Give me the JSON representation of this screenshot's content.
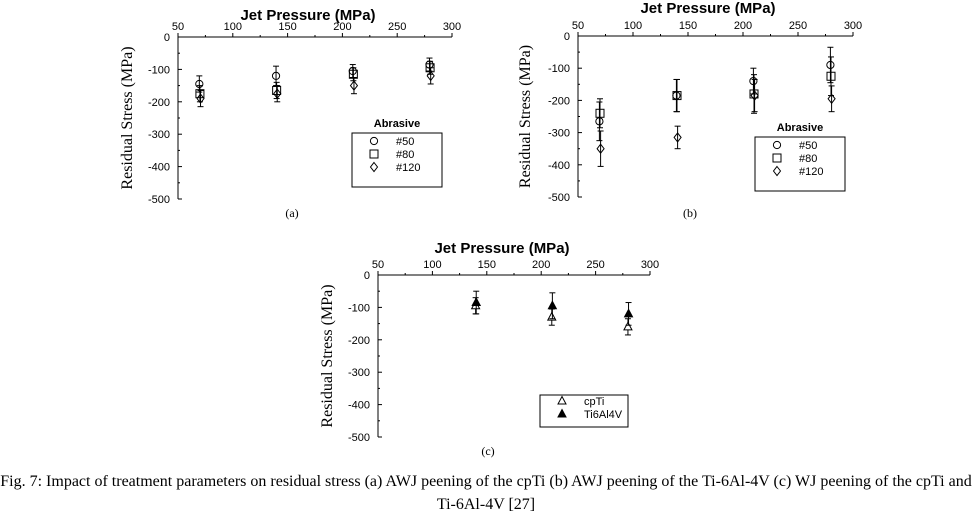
{
  "caption": "Fig. 7: Impact of treatment parameters on residual stress (a) AWJ peening of the cpTi (b) AWJ peening of the Ti-6Al-4V (c) WJ peening of the cpTi and Ti-6Al-4V [27]",
  "chart_data": [
    {
      "type": "scatter",
      "panel_label": "(a)",
      "title": "Jet Pressure (MPa)",
      "xlabel": "Jet Pressure (MPa)",
      "ylabel": "Residual Stress (MPa)",
      "xlim": [
        50,
        300
      ],
      "ylim": [
        -500,
        0
      ],
      "x_ticks": [
        50,
        100,
        150,
        200,
        250,
        300
      ],
      "y_ticks": [
        0,
        -100,
        -200,
        -300,
        -400,
        -500
      ],
      "legend": {
        "title": "Abrasive",
        "position": "bottom-right"
      },
      "error_bars": true,
      "series": [
        {
          "name": "#50",
          "marker": "circle",
          "x": [
            70,
            140,
            210,
            280
          ],
          "y": [
            -145,
            -120,
            -105,
            -85
          ],
          "err": [
            25,
            30,
            20,
            20
          ]
        },
        {
          "name": "#80",
          "marker": "square",
          "x": [
            70,
            140,
            210,
            280
          ],
          "y": [
            -175,
            -165,
            -115,
            -95
          ],
          "err": [
            25,
            25,
            20,
            20
          ]
        },
        {
          "name": "#120",
          "marker": "diamond",
          "x": [
            70,
            140,
            210,
            280
          ],
          "y": [
            -190,
            -175,
            -150,
            -120
          ],
          "err": [
            25,
            25,
            25,
            25
          ]
        }
      ]
    },
    {
      "type": "scatter",
      "panel_label": "(b)",
      "title": "Jet Pressure (MPa)",
      "xlabel": "Jet Pressure (MPa)",
      "ylabel": "Residual Stress (MPa)",
      "xlim": [
        50,
        300
      ],
      "ylim": [
        -500,
        0
      ],
      "x_ticks": [
        50,
        100,
        150,
        200,
        250,
        300
      ],
      "y_ticks": [
        0,
        -100,
        -200,
        -300,
        -400,
        -500
      ],
      "legend": {
        "title": "Abrasive",
        "position": "bottom-right"
      },
      "error_bars": true,
      "series": [
        {
          "name": "#50",
          "marker": "circle",
          "x": [
            70,
            140,
            210,
            280
          ],
          "y": [
            -265,
            -185,
            -140,
            -90
          ],
          "err": [
            60,
            50,
            40,
            55
          ]
        },
        {
          "name": "#80",
          "marker": "square",
          "x": [
            70,
            140,
            210,
            280
          ],
          "y": [
            -240,
            -185,
            -180,
            -125
          ],
          "err": [
            45,
            50,
            60,
            60
          ]
        },
        {
          "name": "#120",
          "marker": "diamond",
          "x": [
            70,
            140,
            210,
            280
          ],
          "y": [
            -350,
            -315,
            -185,
            -195
          ],
          "err": [
            55,
            35,
            50,
            40
          ]
        }
      ]
    },
    {
      "type": "scatter",
      "panel_label": "(c)",
      "title": "Jet Pressure (MPa)",
      "xlabel": "Jet Pressure (MPa)",
      "ylabel": "Residual Stress (MPa)",
      "xlim": [
        50,
        300
      ],
      "ylim": [
        -500,
        0
      ],
      "x_ticks": [
        50,
        100,
        150,
        200,
        250,
        300
      ],
      "y_ticks": [
        0,
        -100,
        -200,
        -300,
        -400,
        -500
      ],
      "legend": {
        "position": "bottom-right"
      },
      "error_bars": true,
      "series": [
        {
          "name": "cpTi",
          "marker": "triangle-open",
          "x": [
            140,
            210,
            280
          ],
          "y": [
            -95,
            -130,
            -160
          ],
          "err": [
            25,
            25,
            25
          ]
        },
        {
          "name": "Ti6Al4V",
          "marker": "triangle-filled",
          "x": [
            140,
            210,
            280
          ],
          "y": [
            -85,
            -95,
            -120
          ],
          "err": [
            35,
            40,
            35
          ]
        }
      ]
    }
  ]
}
